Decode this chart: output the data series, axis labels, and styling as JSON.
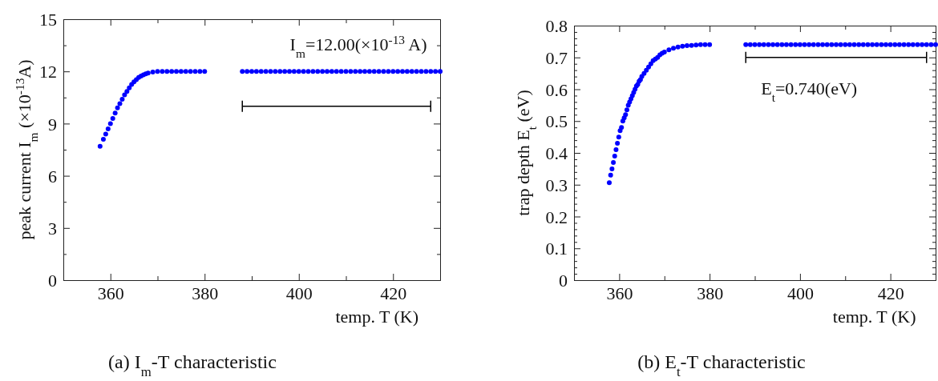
{
  "chart_data": [
    {
      "type": "scatter",
      "title": "(a) I$_{m}$-T characteristic",
      "xlabel": "temp.  T (K)",
      "ylabel": "peak current I$_{m}$ (×10$^{-13}$A)",
      "marker": "circle",
      "annotations": [
        "I$_{m}$=12.00(×10$^{-13}$ A)"
      ],
      "xlim": [
        350,
        430
      ],
      "xticks": [
        360,
        {
          "value": 370,
          "label": null
        },
        380,
        {
          "value": 390,
          "label": null
        },
        400,
        {
          "value": 410,
          "label": null
        },
        420
      ],
      "ylim": [
        0,
        15
      ],
      "yticks": [
        0,
        {
          "value": 1.5,
          "label": null
        },
        3,
        {
          "value": 4.5,
          "label": null
        },
        6,
        {
          "value": 7.5,
          "label": null
        },
        9,
        {
          "value": 10.5,
          "label": null
        },
        12,
        {
          "value": 13.5,
          "label": null
        },
        15
      ],
      "series": [
        {
          "color": "#0000ff",
          "x": [
            357.8,
            358.5,
            359,
            359.5,
            360,
            360.5,
            361,
            361.5,
            362,
            362.5,
            363,
            363.5,
            364,
            364.5,
            365,
            365.5,
            366,
            366.5,
            367,
            367.5,
            368,
            369,
            370,
            371,
            372,
            373,
            374,
            375,
            376,
            377,
            378,
            379,
            380
          ],
          "values": [
            7.7,
            8.1,
            8.4,
            8.7,
            9.0,
            9.3,
            9.6,
            9.9,
            10.15,
            10.4,
            10.65,
            10.85,
            11.05,
            11.25,
            11.4,
            11.53,
            11.65,
            11.73,
            11.8,
            11.86,
            11.9,
            11.96,
            12.0,
            12.0,
            12.0,
            12.0,
            12.0,
            12.0,
            12.0,
            12.0,
            12.0,
            12.0,
            12.0
          ]
        },
        {
          "color": "#0000ff",
          "x": [
            388,
            389,
            390,
            391,
            392,
            393,
            394,
            395,
            396,
            397,
            398,
            399,
            400,
            401,
            402,
            403,
            404,
            405,
            406,
            407,
            408,
            409,
            410,
            411,
            412,
            413,
            414,
            415,
            416,
            417,
            418,
            419,
            420,
            421,
            422,
            423,
            424,
            425,
            426,
            427,
            428,
            429,
            430
          ],
          "values": [
            12.0,
            12.0,
            12.0,
            12.0,
            12.0,
            12.0,
            12.0,
            12.0,
            12.0,
            12.0,
            12.0,
            12.0,
            12.0,
            12.0,
            12.0,
            12.0,
            12.0,
            12.0,
            12.0,
            12.0,
            12.0,
            12.0,
            12.0,
            12.0,
            12.0,
            12.0,
            12.0,
            12.0,
            12.0,
            12.0,
            12.0,
            12.0,
            12.0,
            12.0,
            12.0,
            12.0,
            12.0,
            12.0,
            12.0,
            12.0,
            12.0,
            12.0,
            12.0
          ]
        },
        {
          "type": "line",
          "color": "#000000",
          "marker": "none",
          "x": [
            388,
            428
          ],
          "values": [
            10.0,
            10.0
          ]
        }
      ]
    },
    {
      "type": "scatter",
      "title": "(b) E$_{t}$-T characteristic",
      "xlabel": "temp.  T (K)",
      "ylabel": "trap depth E$_{t}$ (eV)",
      "marker": "circle",
      "annotations": [
        "E$_{t}$=0.740(eV)"
      ],
      "xlim": [
        350,
        430
      ],
      "xticks": [
        360,
        {
          "value": 370,
          "label": null
        },
        380,
        {
          "value": 390,
          "label": null
        },
        400,
        {
          "value": 410,
          "label": null
        },
        420
      ],
      "ylim": [
        0,
        0.8
      ],
      "yticks": [
        0,
        {
          "value": 0.02,
          "label": null
        },
        {
          "value": 0.04,
          "label": null
        },
        {
          "value": 0.06,
          "label": null
        },
        {
          "value": 0.08,
          "label": null
        },
        0.1,
        {
          "value": 0.12,
          "label": null
        },
        {
          "value": 0.14,
          "label": null
        },
        {
          "value": 0.16,
          "label": null
        },
        {
          "value": 0.18,
          "label": null
        },
        0.2,
        {
          "value": 0.22,
          "label": null
        },
        {
          "value": 0.24,
          "label": null
        },
        {
          "value": 0.26,
          "label": null
        },
        {
          "value": 0.28,
          "label": null
        },
        0.3,
        {
          "value": 0.32,
          "label": null
        },
        {
          "value": 0.34,
          "label": null
        },
        {
          "value": 0.36,
          "label": null
        },
        {
          "value": 0.38,
          "label": null
        },
        0.4,
        {
          "value": 0.42,
          "label": null
        },
        {
          "value": 0.44,
          "label": null
        },
        {
          "value": 0.46,
          "label": null
        },
        {
          "value": 0.48,
          "label": null
        },
        0.5,
        {
          "value": 0.52,
          "label": null
        },
        {
          "value": 0.54,
          "label": null
        },
        {
          "value": 0.56,
          "label": null
        },
        {
          "value": 0.58,
          "label": null
        },
        0.6,
        {
          "value": 0.62,
          "label": null
        },
        {
          "value": 0.64,
          "label": null
        },
        {
          "value": 0.66,
          "label": null
        },
        {
          "value": 0.68,
          "label": null
        },
        0.7,
        {
          "value": 0.72,
          "label": null
        },
        {
          "value": 0.74,
          "label": null
        },
        {
          "value": 0.76,
          "label": null
        },
        {
          "value": 0.78,
          "label": null
        },
        0.8
      ],
      "series": [
        {
          "color": "#0000ff",
          "x": [
            357.8,
            358.1,
            358.4,
            358.7,
            359,
            359.3,
            359.6,
            359.9,
            360.2,
            360.5,
            360.8,
            361.1,
            361.4,
            361.7,
            362,
            362.3,
            362.6,
            362.9,
            363.2,
            363.5,
            363.8,
            364.1,
            364.4,
            364.7,
            365,
            365.5,
            366,
            366.5,
            367,
            367.5,
            368,
            368.5,
            369,
            369.5,
            370,
            371,
            372,
            373,
            374,
            375,
            376,
            377,
            378,
            379,
            380
          ],
          "values": [
            0.306,
            0.33,
            0.35,
            0.37,
            0.39,
            0.41,
            0.43,
            0.45,
            0.47,
            0.48,
            0.5,
            0.51,
            0.52,
            0.535,
            0.55,
            0.56,
            0.57,
            0.58,
            0.59,
            0.6,
            0.61,
            0.615,
            0.625,
            0.63,
            0.64,
            0.65,
            0.66,
            0.67,
            0.68,
            0.69,
            0.695,
            0.7,
            0.708,
            0.713,
            0.717,
            0.724,
            0.729,
            0.733,
            0.735,
            0.737,
            0.738,
            0.739,
            0.74,
            0.74,
            0.74
          ]
        },
        {
          "color": "#0000ff",
          "x": [
            388,
            389,
            390,
            391,
            392,
            393,
            394,
            395,
            396,
            397,
            398,
            399,
            400,
            401,
            402,
            403,
            404,
            405,
            406,
            407,
            408,
            409,
            410,
            411,
            412,
            413,
            414,
            415,
            416,
            417,
            418,
            419,
            420,
            421,
            422,
            423,
            424,
            425,
            426,
            427,
            428,
            429,
            430
          ],
          "values": [
            0.74,
            0.74,
            0.74,
            0.74,
            0.74,
            0.74,
            0.74,
            0.74,
            0.74,
            0.74,
            0.74,
            0.74,
            0.74,
            0.74,
            0.74,
            0.74,
            0.74,
            0.74,
            0.74,
            0.74,
            0.74,
            0.74,
            0.74,
            0.74,
            0.74,
            0.74,
            0.74,
            0.74,
            0.74,
            0.74,
            0.74,
            0.74,
            0.74,
            0.74,
            0.74,
            0.74,
            0.74,
            0.74,
            0.74,
            0.74,
            0.74,
            0.74,
            0.74
          ]
        },
        {
          "type": "line",
          "color": "#000000",
          "marker": "none",
          "x": [
            388,
            428
          ],
          "values": [
            0.7,
            0.7
          ]
        }
      ]
    }
  ]
}
